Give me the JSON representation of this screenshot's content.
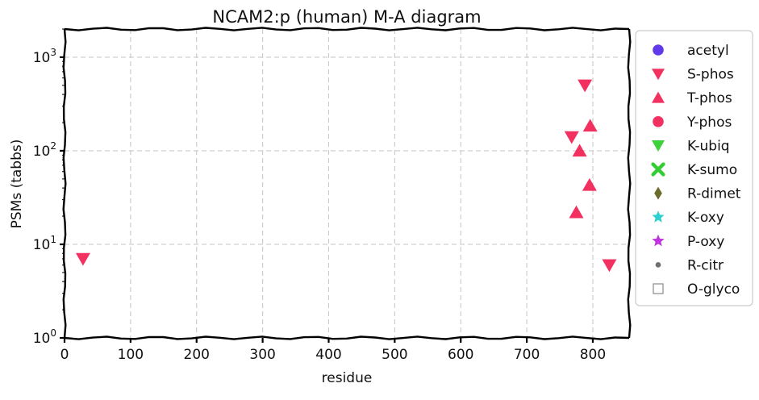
{
  "chart_data": {
    "type": "scatter",
    "title": "NCAM2:p (human) M-A diagram",
    "xlabel": "residue",
    "ylabel": "PSMs (tabbs)",
    "xlim": [
      0,
      855
    ],
    "ylim": [
      1,
      2000
    ],
    "yscale": "log",
    "grid": true,
    "legend_position": "right",
    "x_ticks": [
      0,
      100,
      200,
      300,
      400,
      500,
      600,
      700,
      800
    ],
    "x_tick_labels": [
      "0",
      "100",
      "200",
      "300",
      "400",
      "500",
      "600",
      "700",
      "800"
    ],
    "y_ticks": [
      1,
      10,
      100,
      1000
    ],
    "y_tick_labels": [
      {
        "base": "10",
        "exp": "0"
      },
      {
        "base": "10",
        "exp": "1"
      },
      {
        "base": "10",
        "exp": "2"
      },
      {
        "base": "10",
        "exp": "3"
      }
    ],
    "series": [
      {
        "name": "acetyl",
        "marker": "circle",
        "color": "#4b1fe6",
        "points": []
      },
      {
        "name": "S-phos",
        "marker": "triangle-down",
        "color": "#f0144a",
        "points": [
          {
            "x": 28,
            "y": 7
          },
          {
            "x": 788,
            "y": 500
          },
          {
            "x": 825,
            "y": 6
          },
          {
            "x": 768,
            "y": 140
          }
        ]
      },
      {
        "name": "T-phos",
        "marker": "triangle-up",
        "color": "#f0144a",
        "points": [
          {
            "x": 796,
            "y": 185
          },
          {
            "x": 780,
            "y": 100
          },
          {
            "x": 795,
            "y": 43
          },
          {
            "x": 775,
            "y": 22
          }
        ]
      },
      {
        "name": "Y-phos",
        "marker": "circle",
        "color": "#f0144a",
        "points": []
      },
      {
        "name": "K-ubiq",
        "marker": "triangle-down",
        "color": "#22cc22",
        "points": []
      },
      {
        "name": "K-sumo",
        "marker": "x",
        "color": "#33cc33",
        "points": []
      },
      {
        "name": "R-dimet",
        "marker": "diamond",
        "color": "#6b6b2c",
        "points": []
      },
      {
        "name": "K-oxy",
        "marker": "star",
        "color": "#2ecfcf",
        "points": []
      },
      {
        "name": "P-oxy",
        "marker": "star",
        "color": "#c033dd",
        "points": []
      },
      {
        "name": "R-citr",
        "marker": "dot",
        "color": "#707070",
        "points": []
      },
      {
        "name": "O-glyco",
        "marker": "square-open",
        "color": "#999999",
        "points": []
      }
    ]
  }
}
